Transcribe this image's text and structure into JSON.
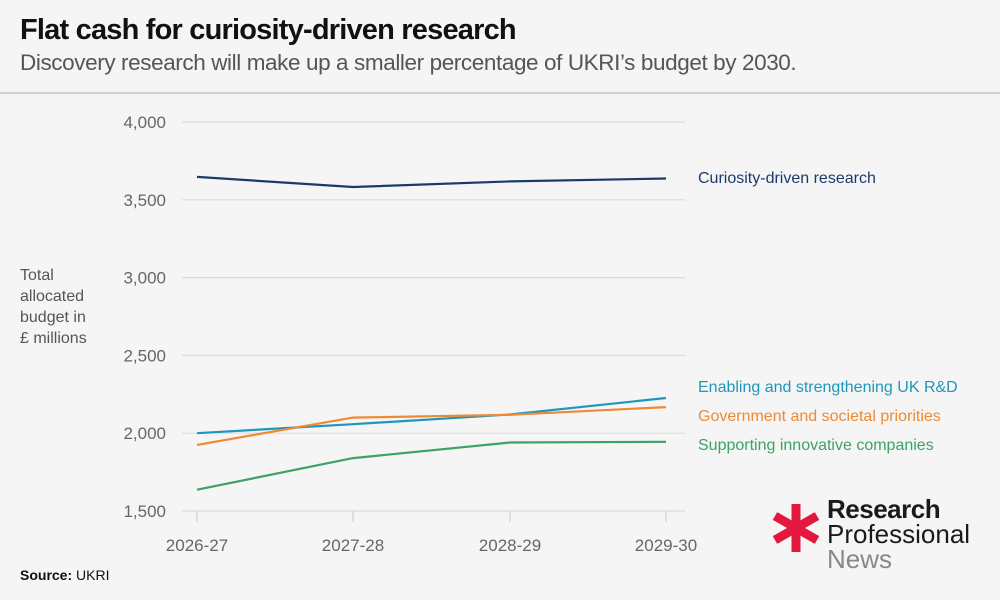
{
  "header": {
    "title": "Flat cash for curiosity-driven research",
    "subtitle": "Discovery research will make up a smaller percentage of UKRI’s budget by 2030."
  },
  "footer": {
    "source_label": "Source:",
    "source_value": "UKRI"
  },
  "logo": {
    "icon": "asterisk-icon",
    "line1": "Research",
    "line2": "Professional",
    "line3": "News",
    "accent_color": "#e3183c"
  },
  "chart_data": {
    "type": "line",
    "title": "Flat cash for curiosity-driven research",
    "subtitle": "Discovery research will make up a smaller percentage of UKRI’s budget by 2030.",
    "xlabel": "",
    "ylabel": "Total allocated budget in £ millions",
    "ylabel_lines": [
      "Total",
      "allocated",
      "budget in",
      "£ millions"
    ],
    "categories": [
      "2026-27",
      "2027-28",
      "2028-29",
      "2029-30"
    ],
    "ylim": [
      1500,
      4000
    ],
    "yticks": [
      1500,
      2000,
      2500,
      3000,
      3500,
      4000
    ],
    "ytick_labels": [
      "1,500",
      "2,000",
      "2,500",
      "3,000",
      "3,500",
      "4,000"
    ],
    "grid": true,
    "legend_placement": "right (direct labels at line ends)",
    "series": [
      {
        "name": "Curiosity-driven research",
        "color": "#1b3a6b",
        "values": [
          3647,
          3582,
          3618,
          3637
        ]
      },
      {
        "name": "Enabling and strengthening UK R&D",
        "color": "#1f97bd",
        "values": [
          2000,
          2058,
          2120,
          2226
        ]
      },
      {
        "name": "Government and societal priorities",
        "color": "#ee8a35",
        "values": [
          1925,
          2100,
          2118,
          2168
        ]
      },
      {
        "name": "Supporting innovative companies",
        "color": "#3aa365",
        "values": [
          1637,
          1840,
          1940,
          1945
        ]
      }
    ]
  }
}
